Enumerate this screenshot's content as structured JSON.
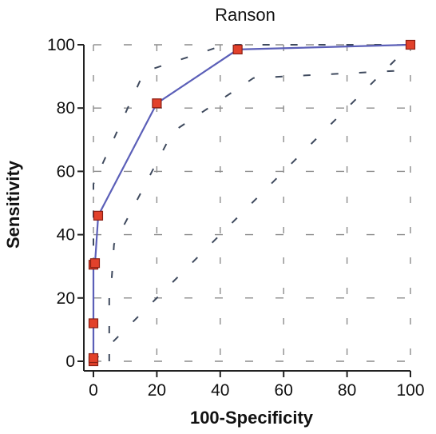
{
  "chart_data": {
    "type": "line",
    "title": "Ranson",
    "xlabel": "100-Specificity",
    "ylabel": "Sensitivity",
    "xlim": [
      0,
      100
    ],
    "ylim": [
      0,
      100
    ],
    "x_ticks": [
      "0",
      "20",
      "40",
      "60",
      "80",
      "100"
    ],
    "y_ticks": [
      "0",
      "20",
      "40",
      "60",
      "80",
      "100"
    ],
    "grid": true,
    "series": [
      {
        "type": "roc_curve",
        "x": [
          0,
          0,
          0,
          0,
          0.5,
          1.5,
          20,
          45.5,
          100
        ],
        "y": [
          0,
          1,
          12,
          30.5,
          31,
          46,
          81.5,
          98.5,
          100
        ]
      }
    ],
    "colors": {
      "line": "#5b5fb8",
      "marker_fill": "#e2412b",
      "marker_edge": "#8a1f14",
      "grid": "#8c8c8c",
      "axis": "#222222",
      "confidence_dash": "#3f4a5e"
    }
  }
}
